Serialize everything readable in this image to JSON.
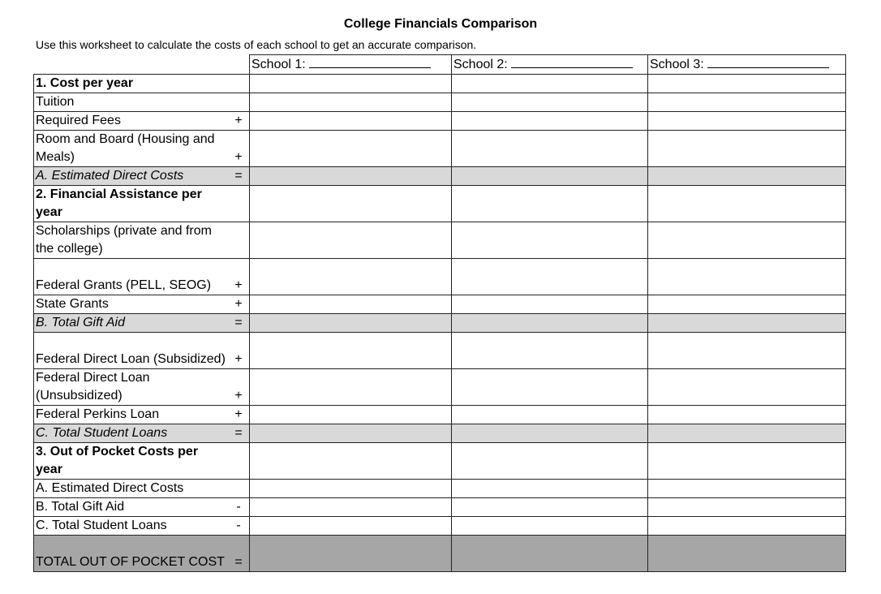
{
  "title": "College Financials Comparison",
  "subtitle": "Use this worksheet to calculate the costs of each school to get an accurate comparison.",
  "schools": [
    "School 1:",
    "School 2:",
    "School 3:"
  ],
  "rows": [
    {
      "label": "1. Cost per year",
      "sign": "",
      "style": "bold",
      "h": 1
    },
    {
      "label": "Tuition",
      "sign": "",
      "style": "",
      "h": 1
    },
    {
      "label": "Required Fees",
      "sign": "+",
      "style": "",
      "h": 1
    },
    {
      "label": "Room and Board (Housing and Meals)",
      "sign": "+",
      "style": "",
      "h": 2
    },
    {
      "label": "A. Estimated Direct Costs",
      "sign": "=",
      "style": "subtotal",
      "h": 1
    },
    {
      "label": "2. Financial Assistance per year",
      "sign": "",
      "style": "bold",
      "h": 2
    },
    {
      "label": "Scholarships (private and from the college)",
      "sign": "",
      "style": "",
      "h": 2
    },
    {
      "label": "Federal Grants (PELL, SEOG)",
      "sign": "+",
      "style": "",
      "h": 2
    },
    {
      "label": "State Grants",
      "sign": "+",
      "style": "",
      "h": 1
    },
    {
      "label": "B. Total Gift Aid",
      "sign": "=",
      "style": "subtotal",
      "h": 1
    },
    {
      "label": "Federal Direct Loan (Subsidized)",
      "sign": "+",
      "style": "",
      "h": 2
    },
    {
      "label": "Federal Direct Loan (Unsubsidized)",
      "sign": "+",
      "style": "",
      "h": 2
    },
    {
      "label": "Federal Perkins Loan",
      "sign": "+",
      "style": "",
      "h": 1
    },
    {
      "label": "C. Total Student Loans",
      "sign": "=",
      "style": "subtotal",
      "h": 1
    },
    {
      "label": "3. Out of Pocket Costs per year",
      "sign": "",
      "style": "bold",
      "h": 2
    },
    {
      "label": "A. Estimated Direct Costs",
      "sign": "",
      "style": "",
      "h": 1
    },
    {
      "label": "B. Total Gift Aid",
      "sign": "-",
      "style": "",
      "h": 1
    },
    {
      "label": "C. Total Student Loans",
      "sign": "-",
      "style": "",
      "h": 1
    },
    {
      "label": "TOTAL OUT OF POCKET COST",
      "sign": "=",
      "style": "total",
      "h": 2
    }
  ],
  "colors": {
    "subtotal_fill": "#d9d9d9",
    "total_fill": "#a6a6a6"
  }
}
